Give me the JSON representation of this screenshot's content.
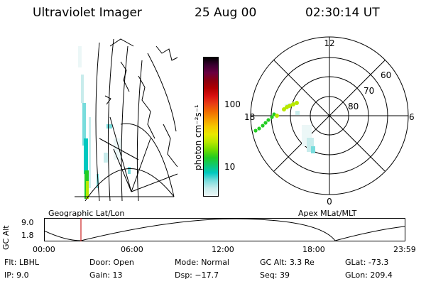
{
  "header": {
    "instrument": "Ultraviolet Imager",
    "date": "25 Aug 00",
    "time": "02:30:14 UT"
  },
  "colorbar": {
    "unit_label": "photon cm⁻²s⁻¹",
    "ticks": [
      "100",
      "10"
    ],
    "colors": [
      "#000000",
      "#3a0030",
      "#6a0040",
      "#8a0010",
      "#b00000",
      "#d81010",
      "#e83c14",
      "#f06a00",
      "#f59a00",
      "#f5c800",
      "#e8e800",
      "#b8e800",
      "#70dc00",
      "#22cc22",
      "#10c870",
      "#00c8c0",
      "#78dcdc",
      "#c8ecec",
      "#ecf7f7"
    ]
  },
  "left_panel": {
    "label": "Geographic Lat/Lon"
  },
  "right_panel": {
    "label": "Apex MLat/MLT",
    "lat_labels": [
      "60",
      "70",
      "80"
    ],
    "mlt_labels": {
      "top": "12",
      "left": "18",
      "right": "6",
      "bottom": "0"
    }
  },
  "altitude_strip": {
    "axis_title": "GC Alt",
    "y_ticks": [
      "9.0",
      "1.8"
    ],
    "x_ticks": [
      "00:00",
      "06:00",
      "12:00",
      "18:00",
      "23:59"
    ],
    "current_time_color": "#cc2020"
  },
  "status": {
    "row1": [
      {
        "key": "Flt:",
        "value": "LBHL"
      },
      {
        "key": "Door:",
        "value": "Open"
      },
      {
        "key": "Mode:",
        "value": "Normal"
      },
      {
        "key": "GC Alt:",
        "value": "3.3 Re"
      },
      {
        "key": "GLat:",
        "value": "-73.3"
      }
    ],
    "row2": [
      {
        "key": "IP:",
        "value": "9.0"
      },
      {
        "key": "Gain:",
        "value": "13"
      },
      {
        "key": "Dsp:",
        "value": "−17.7"
      },
      {
        "key": "Seq:",
        "value": "39"
      },
      {
        "key": "GLon:",
        "value": "209.4"
      }
    ]
  }
}
